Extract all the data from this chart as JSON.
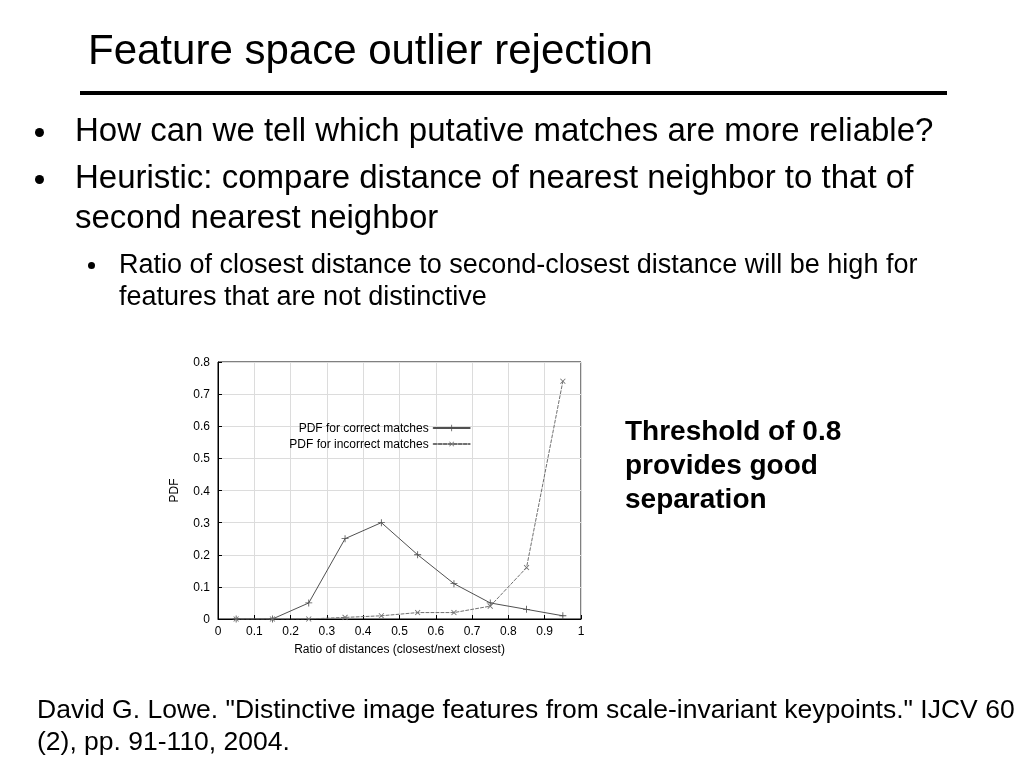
{
  "chart_data": {
    "type": "line",
    "title": "Feature space outlier rejection",
    "annotations": [
      "How can we tell which putative matches are more reliable?",
      "Heuristic: compare distance of nearest neighbor to that of second nearest neighbor",
      "Ratio of closest distance to second-closest distance will be high for features that are not distinctive",
      "Threshold of 0.8 provides good separation",
      "David G. Lowe. \"Distinctive image features from scale-invariant keypoints.\" IJCV 60 (2), pp. 91-110, 2004."
    ],
    "xlabel": "Ratio of distances (closest/next closest)",
    "ylabel": "PDF",
    "x": [
      0.05,
      0.15,
      0.25,
      0.35,
      0.45,
      0.55,
      0.65,
      0.75,
      0.85,
      0.95
    ],
    "series": [
      {
        "name": "PDF for correct matches",
        "color": "#505050",
        "line_style": "solid",
        "marker": "cross",
        "values": [
          0,
          0,
          0.05,
          0.25,
          0.3,
          0.2,
          0.11,
          0.05,
          0.03,
          0.01
        ]
      },
      {
        "name": "PDF for incorrect matches",
        "color": "#707070",
        "line_style": "dashed",
        "marker": "cross",
        "values": [
          0,
          0,
          0,
          0.005,
          0.01,
          0.02,
          0.02,
          0.04,
          0.16,
          0.74
        ]
      }
    ],
    "xlim": [
      0,
      1
    ],
    "xticks": [
      0,
      0.1,
      0.2,
      0.3,
      0.4,
      0.5,
      0.6,
      0.7,
      0.8,
      0.9,
      1
    ],
    "ylim": [
      0,
      0.8
    ],
    "yticks": [
      0,
      0.1,
      0.2,
      0.3,
      0.4,
      0.5,
      0.6,
      0.7,
      0.8
    ],
    "grid": true,
    "legend": "top"
  }
}
